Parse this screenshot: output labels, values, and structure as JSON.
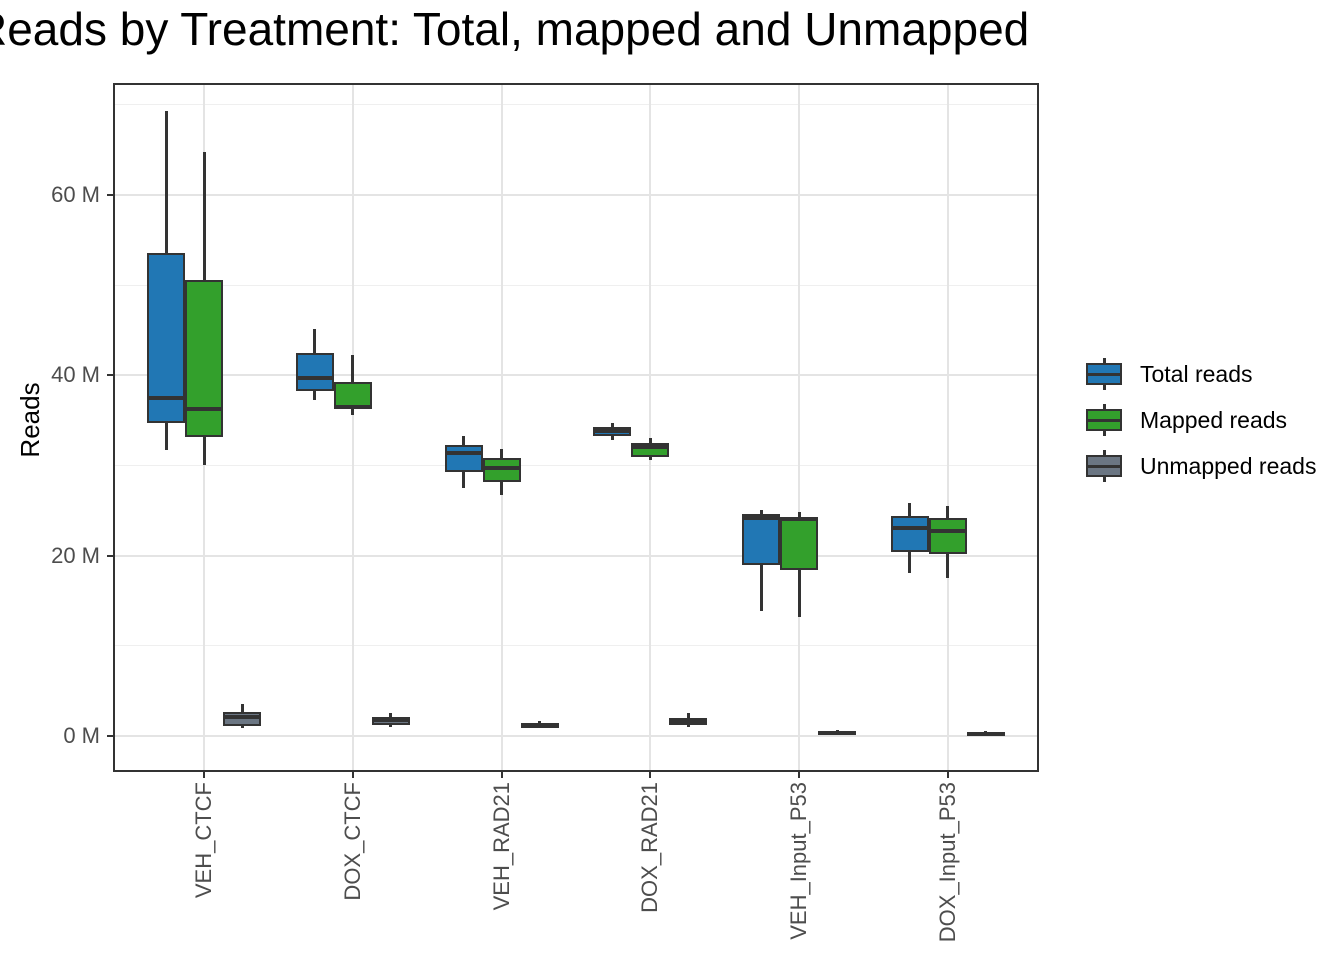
{
  "title": "Reads by Treatment: Total, mapped and Unmapped",
  "y_axis": {
    "title": "Reads",
    "ticks": [
      {
        "value": 0,
        "label": "0 M"
      },
      {
        "value": 20,
        "label": "20 M"
      },
      {
        "value": 40,
        "label": "40 M"
      },
      {
        "value": 60,
        "label": "60 M"
      }
    ],
    "minor_gridlines": [
      10,
      30,
      50,
      70
    ]
  },
  "x_axis": {
    "categories": [
      "VEH_CTCF",
      "DOX_CTCF",
      "VEH_RAD21",
      "DOX_RAD21",
      "VEH_Input_P53",
      "DOX_Input_P53"
    ]
  },
  "legend": {
    "position": "right",
    "items": [
      {
        "label": "Total reads",
        "color": "#2177b4"
      },
      {
        "label": "Mapped reads",
        "color": "#33a02c"
      },
      {
        "label": "Unmapped reads",
        "color": "#6b7683"
      }
    ]
  },
  "colors": {
    "total_reads": "#2177b4",
    "mapped_reads": "#33a02c",
    "unmapped_reads": "#6b7683",
    "box_border": "#333333",
    "grid_major": "#e4e4e4",
    "grid_minor": "#efefef",
    "axis_text": "#4d4d4d"
  },
  "chart_data": {
    "type": "boxplot",
    "title": "Reads by Treatment: Total, mapped and Unmapped",
    "xlabel": "",
    "ylabel": "Reads",
    "unit": "M (millions of reads)",
    "ylim": [
      -3.8,
      72.2
    ],
    "grid": true,
    "legend_position": "right",
    "categories": [
      "VEH_CTCF",
      "DOX_CTCF",
      "VEH_RAD21",
      "DOX_RAD21",
      "VEH_Input_P53",
      "DOX_Input_P53"
    ],
    "series": [
      {
        "name": "Total reads",
        "color": "#2177b4",
        "data": [
          {
            "low": 31.7,
            "q1": 34.7,
            "median": 37.5,
            "q3": 53.6,
            "high": 69.3
          },
          {
            "low": 37.3,
            "q1": 38.2,
            "median": 39.7,
            "q3": 42.5,
            "high": 45.1
          },
          {
            "low": 27.5,
            "q1": 29.3,
            "median": 31.4,
            "q3": 32.3,
            "high": 33.3
          },
          {
            "low": 32.8,
            "q1": 33.2,
            "median": 33.8,
            "q3": 34.3,
            "high": 34.7
          },
          {
            "low": 13.8,
            "q1": 19.0,
            "median": 24.2,
            "q3": 24.6,
            "high": 25.1
          },
          {
            "low": 18.1,
            "q1": 20.4,
            "median": 23.0,
            "q3": 24.4,
            "high": 25.8
          }
        ]
      },
      {
        "name": "Mapped reads",
        "color": "#33a02c",
        "data": [
          {
            "low": 30.0,
            "q1": 33.1,
            "median": 36.3,
            "q3": 50.6,
            "high": 64.8
          },
          {
            "low": 35.6,
            "q1": 36.2,
            "median": 36.5,
            "q3": 39.3,
            "high": 42.3
          },
          {
            "low": 26.7,
            "q1": 28.1,
            "median": 29.7,
            "q3": 30.8,
            "high": 31.8
          },
          {
            "low": 30.6,
            "q1": 30.9,
            "median": 32.0,
            "q3": 32.5,
            "high": 33.0
          },
          {
            "low": 13.2,
            "q1": 18.4,
            "median": 24.0,
            "q3": 24.3,
            "high": 24.8
          },
          {
            "low": 17.5,
            "q1": 20.2,
            "median": 22.7,
            "q3": 24.2,
            "high": 25.5
          }
        ]
      },
      {
        "name": "Unmapped reads",
        "color": "#6b7683",
        "data": [
          {
            "low": 0.8,
            "q1": 1.1,
            "median": 2.1,
            "q3": 2.6,
            "high": 3.5
          },
          {
            "low": 1.0,
            "q1": 1.2,
            "median": 1.7,
            "q3": 2.1,
            "high": 2.5
          },
          {
            "low": 0.8,
            "q1": 0.9,
            "median": 1.15,
            "q3": 1.4,
            "high": 1.6
          },
          {
            "low": 1.0,
            "q1": 1.2,
            "median": 1.6,
            "q3": 2.0,
            "high": 2.5
          },
          {
            "low": 0.1,
            "q1": 0.15,
            "median": 0.3,
            "q3": 0.5,
            "high": 0.65
          },
          {
            "low": 0.05,
            "q1": 0.1,
            "median": 0.25,
            "q3": 0.4,
            "high": 0.5
          }
        ]
      }
    ]
  }
}
